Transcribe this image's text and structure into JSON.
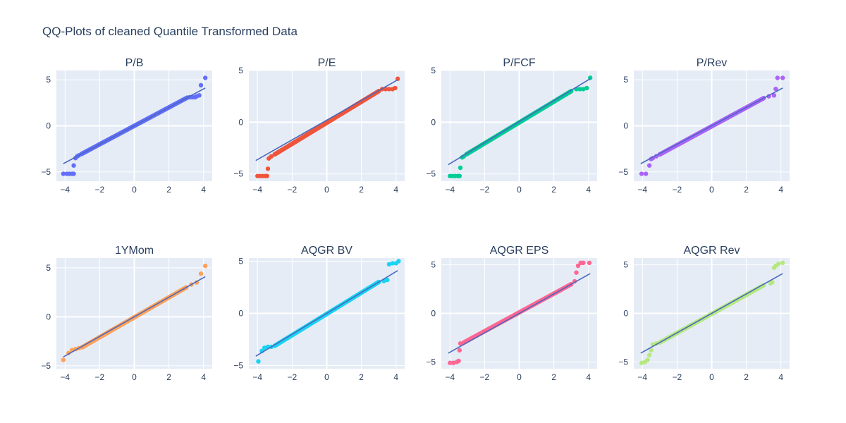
{
  "title": "QQ-Plots of cleaned Quantile Transformed Data",
  "chart_data": [
    {
      "type": "scatter",
      "title": "P/B",
      "color": "#636efa",
      "xlim": [
        -4.5,
        4.5
      ],
      "ylim": [
        -6,
        6
      ],
      "xticks": [
        -4,
        -2,
        0,
        2,
        4
      ],
      "yticks": [
        -5,
        0,
        5
      ],
      "reference_line": {
        "x": [
          -4.1,
          4.1
        ],
        "y": [
          -4.1,
          4.1
        ],
        "color": "#4a69bd"
      },
      "left_tail": [
        [
          -4.1,
          -5.2
        ],
        [
          -3.9,
          -5.2
        ],
        [
          -3.75,
          -5.2
        ],
        [
          -3.6,
          -5.2
        ],
        [
          -3.5,
          -5.2
        ],
        [
          -3.5,
          -4.3
        ],
        [
          -3.4,
          -3.5
        ],
        [
          -3.3,
          -3.3
        ],
        [
          -3.2,
          -3.2
        ],
        [
          -3.05,
          -3.05
        ]
      ],
      "right_tail": [
        [
          3.05,
          3.05
        ],
        [
          3.2,
          3.1
        ],
        [
          3.35,
          3.1
        ],
        [
          3.5,
          3.1
        ],
        [
          3.6,
          3.2
        ],
        [
          3.75,
          3.3
        ],
        [
          3.85,
          4.4
        ],
        [
          4.1,
          5.2
        ]
      ]
    },
    {
      "type": "scatter",
      "title": "P/E",
      "color": "#ef553b",
      "xlim": [
        -4.5,
        4.5
      ],
      "ylim": [
        -5.7,
        5
      ],
      "xticks": [
        -4,
        -2,
        0,
        2,
        4
      ],
      "yticks": [
        -5,
        0,
        5
      ],
      "reference_line": {
        "x": [
          -4.1,
          4.1
        ],
        "y": [
          -3.7,
          4.1
        ],
        "color": "#4a69bd"
      },
      "left_tail": [
        [
          -4.0,
          -5.2
        ],
        [
          -3.85,
          -5.2
        ],
        [
          -3.7,
          -5.2
        ],
        [
          -3.55,
          -5.2
        ],
        [
          -3.45,
          -5.2
        ],
        [
          -3.4,
          -4.5
        ],
        [
          -3.35,
          -3.5
        ],
        [
          -3.2,
          -3.3
        ],
        [
          -3.0,
          -3.1
        ]
      ],
      "right_tail": [
        [
          3.0,
          3.0
        ],
        [
          3.2,
          3.2
        ],
        [
          3.4,
          3.2
        ],
        [
          3.6,
          3.2
        ],
        [
          3.8,
          3.2
        ],
        [
          3.95,
          3.3
        ],
        [
          4.1,
          4.2
        ]
      ]
    },
    {
      "type": "scatter",
      "title": "P/FCF",
      "color": "#00cc96",
      "xlim": [
        -4.5,
        4.5
      ],
      "ylim": [
        -5.7,
        5
      ],
      "xticks": [
        -4,
        -2,
        0,
        2,
        4
      ],
      "yticks": [
        -5,
        0,
        5
      ],
      "reference_line": {
        "x": [
          -4.1,
          4.1
        ],
        "y": [
          -4.1,
          4.2
        ],
        "color": "#4a69bd"
      },
      "left_tail": [
        [
          -4.0,
          -5.2
        ],
        [
          -3.85,
          -5.2
        ],
        [
          -3.7,
          -5.2
        ],
        [
          -3.55,
          -5.2
        ],
        [
          -3.45,
          -5.2
        ],
        [
          -3.4,
          -4.4
        ],
        [
          -3.3,
          -3.4
        ],
        [
          -3.2,
          -3.3
        ],
        [
          -3.05,
          -3.1
        ]
      ],
      "right_tail": [
        [
          3.0,
          3.0
        ],
        [
          3.3,
          3.2
        ],
        [
          3.5,
          3.2
        ],
        [
          3.7,
          3.2
        ],
        [
          3.9,
          3.3
        ],
        [
          4.1,
          4.3
        ]
      ]
    },
    {
      "type": "scatter",
      "title": "P/Rev",
      "color": "#ab63fa",
      "xlim": [
        -4.5,
        4.5
      ],
      "ylim": [
        -6,
        6
      ],
      "xticks": [
        -4,
        -2,
        0,
        2,
        4
      ],
      "yticks": [
        -5,
        0,
        5
      ],
      "reference_line": {
        "x": [
          -4.1,
          4.1
        ],
        "y": [
          -4.1,
          4.1
        ],
        "color": "#4a69bd"
      },
      "left_tail": [
        [
          -4.05,
          -5.2
        ],
        [
          -3.8,
          -5.2
        ],
        [
          -3.6,
          -4.3
        ],
        [
          -3.5,
          -3.6
        ],
        [
          -3.4,
          -3.5
        ],
        [
          -3.2,
          -3.3
        ],
        [
          -3.0,
          -3.1
        ]
      ],
      "right_tail": [
        [
          3.0,
          3.0
        ],
        [
          3.3,
          3.2
        ],
        [
          3.6,
          3.3
        ],
        [
          3.7,
          4.0
        ],
        [
          3.8,
          5.2
        ],
        [
          4.1,
          5.2
        ]
      ]
    },
    {
      "type": "scatter",
      "title": "1YMom",
      "color": "#ffa15a",
      "xlim": [
        -4.5,
        4.5
      ],
      "ylim": [
        -5.3,
        6
      ],
      "xticks": [
        -4,
        -2,
        0,
        2,
        4
      ],
      "yticks": [
        -5,
        0,
        5
      ],
      "reference_line": {
        "x": [
          -4.1,
          4.1
        ],
        "y": [
          -4.1,
          4.1
        ],
        "color": "#4a69bd"
      },
      "left_tail": [
        [
          -4.1,
          -4.4
        ],
        [
          -3.8,
          -3.7
        ],
        [
          -3.6,
          -3.4
        ],
        [
          -3.4,
          -3.3
        ],
        [
          -3.2,
          -3.2
        ],
        [
          -3.0,
          -3.1
        ]
      ],
      "right_tail": [
        [
          3.0,
          3.0
        ],
        [
          3.3,
          3.3
        ],
        [
          3.6,
          3.5
        ],
        [
          3.85,
          4.4
        ],
        [
          4.1,
          5.2
        ]
      ]
    },
    {
      "type": "scatter",
      "title": "AQGR BV",
      "color": "#19d3f3",
      "xlim": [
        -4.5,
        4.5
      ],
      "ylim": [
        -5.3,
        5.3
      ],
      "xticks": [
        -4,
        -2,
        0,
        2,
        4
      ],
      "yticks": [
        -5,
        0,
        5
      ],
      "reference_line": {
        "x": [
          -4.1,
          4.1
        ],
        "y": [
          -4.1,
          4.1
        ],
        "color": "#4a69bd"
      },
      "left_tail": [
        [
          -3.95,
          -4.6
        ],
        [
          -3.75,
          -3.6
        ],
        [
          -3.6,
          -3.3
        ],
        [
          -3.4,
          -3.2
        ],
        [
          -3.2,
          -3.2
        ],
        [
          -3.0,
          -3.1
        ]
      ],
      "right_tail": [
        [
          3.0,
          3.0
        ],
        [
          3.3,
          3.1
        ],
        [
          3.5,
          3.2
        ],
        [
          3.6,
          4.7
        ],
        [
          3.8,
          4.8
        ],
        [
          4.0,
          4.8
        ],
        [
          4.15,
          5.0
        ]
      ]
    },
    {
      "type": "scatter",
      "title": "AQGR EPS",
      "color": "#ff6692",
      "xlim": [
        -4.5,
        4.5
      ],
      "ylim": [
        -5.7,
        5.7
      ],
      "xticks": [
        -4,
        -2,
        0,
        2,
        4
      ],
      "yticks": [
        -5,
        0,
        5
      ],
      "reference_line": {
        "x": [
          -4.1,
          4.1
        ],
        "y": [
          -4.1,
          4.1
        ],
        "color": "#4a69bd"
      },
      "left_tail": [
        [
          -4.0,
          -5.1
        ],
        [
          -3.8,
          -5.1
        ],
        [
          -3.6,
          -5.0
        ],
        [
          -3.5,
          -4.9
        ],
        [
          -3.45,
          -3.8
        ],
        [
          -3.4,
          -3.1
        ],
        [
          -3.2,
          -3.0
        ]
      ],
      "right_tail": [
        [
          3.0,
          3.0
        ],
        [
          3.2,
          3.3
        ],
        [
          3.3,
          4.2
        ],
        [
          3.4,
          4.9
        ],
        [
          3.55,
          5.2
        ],
        [
          3.7,
          5.2
        ],
        [
          4.05,
          5.2
        ]
      ]
    },
    {
      "type": "scatter",
      "title": "AQGR Rev",
      "color": "#b6e880",
      "xlim": [
        -4.5,
        4.5
      ],
      "ylim": [
        -5.7,
        5.7
      ],
      "xticks": [
        -4,
        -2,
        0,
        2,
        4
      ],
      "yticks": [
        -5,
        0,
        5
      ],
      "reference_line": {
        "x": [
          -4.1,
          4.1
        ],
        "y": [
          -4.1,
          4.1
        ],
        "color": "#4a69bd"
      },
      "left_tail": [
        [
          -4.05,
          -5.1
        ],
        [
          -3.85,
          -5.0
        ],
        [
          -3.7,
          -4.8
        ],
        [
          -3.6,
          -4.3
        ],
        [
          -3.5,
          -3.8
        ],
        [
          -3.4,
          -3.2
        ],
        [
          -3.2,
          -3.1
        ],
        [
          -3.0,
          -3.0
        ]
      ],
      "right_tail": [
        [
          3.0,
          2.9
        ],
        [
          3.4,
          3.1
        ],
        [
          3.5,
          3.2
        ],
        [
          3.6,
          4.7
        ],
        [
          3.7,
          4.9
        ],
        [
          3.85,
          5.1
        ],
        [
          4.1,
          5.2
        ]
      ]
    }
  ]
}
